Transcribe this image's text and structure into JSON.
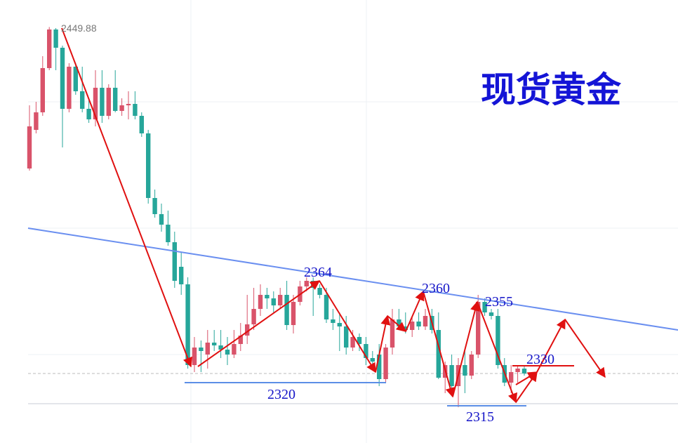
{
  "chart_data": {
    "type": "candlestick",
    "title": "现货黄金",
    "up_color": "#d9536a",
    "down_color": "#26a69a",
    "ylim": [
      2301.75,
      2459.5
    ],
    "open": [
      2399.5,
      2413.25,
      2419.5,
      2435.25,
      2449,
      2442.5,
      2420.75,
      2435.75,
      2427,
      2420.75,
      2417,
      2428.25,
      2418.25,
      2428.25,
      2420,
      2422,
      2422.5,
      2418.25,
      2412,
      2389,
      2383.25,
      2379.5,
      2373.25,
      2364.5,
      2358.25,
      2329.5,
      2335.75,
      2333.25,
      2337.5,
      2336.5,
      2335,
      2333.25,
      2337,
      2340,
      2344,
      2349.5,
      2354.5,
      2353.25,
      2350.75,
      2354.5,
      2343.75,
      2352,
      2357.5,
      2359.5,
      2357,
      2354.5,
      2345.75,
      2344.5,
      2343.25,
      2335.75,
      2339.5,
      2337,
      2332,
      2333.25,
      2324.5,
      2335.75,
      2345.75,
      2343.25,
      2342,
      2345,
      2343.25,
      2347,
      2342,
      2325,
      2329.5,
      2322,
      2329.5,
      2325.75,
      2333.25,
      2352,
      2348.25,
      2347,
      2329.5,
      2323.25,
      2327,
      2328.25
    ],
    "high": [
      2422,
      2423.25,
      2439.5,
      2449.88,
      2449.5,
      2443.25,
      2437,
      2437,
      2435.75,
      2424.5,
      2434.5,
      2434.5,
      2429.5,
      2434.5,
      2424.5,
      2427,
      2427,
      2419.5,
      2413.25,
      2392,
      2387,
      2384.5,
      2377,
      2369.5,
      2360.75,
      2339.5,
      2338.25,
      2342,
      2342,
      2342,
      2339.5,
      2342,
      2344.5,
      2354.5,
      2357,
      2358.25,
      2357,
      2355.75,
      2357,
      2359.5,
      2354.5,
      2359.5,
      2360.75,
      2360.75,
      2358.25,
      2357,
      2349.5,
      2348.25,
      2347,
      2342,
      2340.75,
      2339.5,
      2334.5,
      2337,
      2337,
      2349.5,
      2349.5,
      2348.25,
      2347,
      2348.25,
      2349.5,
      2349.5,
      2348.25,
      2330.75,
      2333.25,
      2332,
      2334.5,
      2334.5,
      2354.5,
      2353.25,
      2349.5,
      2349.5,
      2332,
      2329.5,
      2329.5,
      2329.5
    ],
    "low": [
      2398.75,
      2412,
      2418.25,
      2434.5,
      2434.5,
      2407,
      2419.5,
      2425.75,
      2419.5,
      2415.75,
      2414.5,
      2415.75,
      2417,
      2419.5,
      2418.25,
      2417,
      2417,
      2410.75,
      2387,
      2382,
      2377,
      2372,
      2357,
      2354.5,
      2328.25,
      2327,
      2327,
      2328.25,
      2334.5,
      2332,
      2329.5,
      2332,
      2334.5,
      2337,
      2342,
      2347,
      2349.5,
      2348.25,
      2349.5,
      2342,
      2340.75,
      2350.75,
      2355.75,
      2347,
      2353.25,
      2344.5,
      2342,
      2334.5,
      2333.25,
      2334.5,
      2334.5,
      2329.5,
      2329.5,
      2322,
      2323.25,
      2333.25,
      2342,
      2340.75,
      2339.5,
      2342,
      2342,
      2340.75,
      2324.5,
      2319.5,
      2320.75,
      2314.5,
      2319.5,
      2324.5,
      2332,
      2347,
      2345.75,
      2328.25,
      2322,
      2319.5,
      2323.25,
      2325.75
    ],
    "close": [
      2414.5,
      2419.5,
      2435.25,
      2449,
      2442.5,
      2420.75,
      2435.75,
      2427,
      2420.75,
      2417,
      2428.25,
      2418.25,
      2428.25,
      2420,
      2422,
      2422.5,
      2418.25,
      2412,
      2389,
      2383.25,
      2379.5,
      2373.25,
      2359.5,
      2358.25,
      2329.5,
      2335.75,
      2334.5,
      2337.5,
      2336.5,
      2335,
      2333.25,
      2337,
      2340,
      2344,
      2349.5,
      2354.5,
      2353.25,
      2350.75,
      2354.5,
      2343.75,
      2352,
      2357.5,
      2359.5,
      2357,
      2354.5,
      2345.75,
      2344.5,
      2343.25,
      2335.75,
      2339.5,
      2337,
      2332,
      2330.75,
      2324.5,
      2335.75,
      2345.75,
      2343.25,
      2342,
      2345,
      2343.25,
      2347,
      2342,
      2325,
      2329.5,
      2322,
      2329.5,
      2325.75,
      2333.25,
      2352,
      2348.25,
      2347,
      2329.5,
      2323.25,
      2327,
      2328.25,
      2326.5
    ],
    "annotations": [
      "2449.88",
      "2364",
      "2360",
      "2355",
      "2320",
      "2315",
      "2330"
    ]
  }
}
